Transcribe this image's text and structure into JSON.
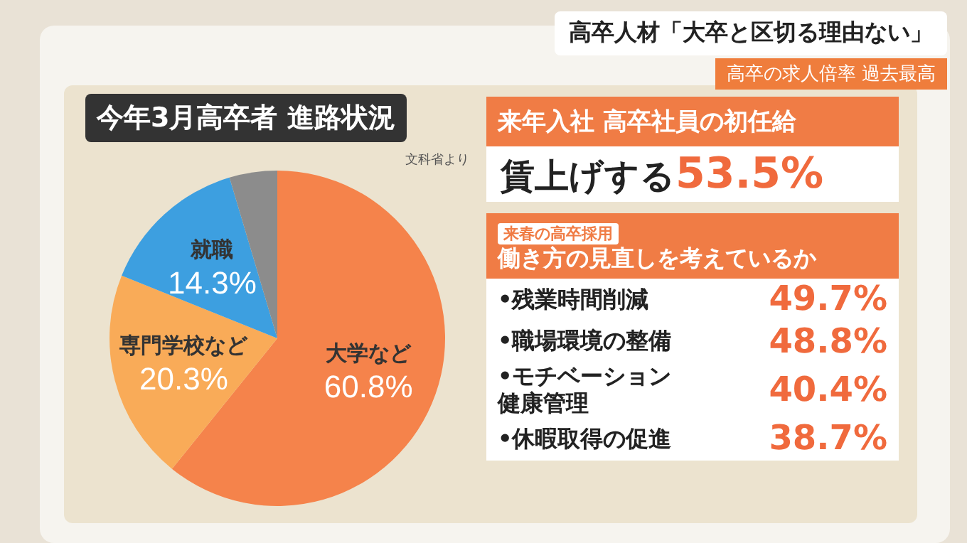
{
  "chart_data": [
    {
      "type": "other",
      "title": "高卒人材「大卒と区切る理由ない」",
      "subtitle": "高卒の求人倍率 過去最高"
    },
    {
      "type": "pie",
      "title": "今年3月高卒者 進路状況",
      "annotations": [
        "文科省より"
      ],
      "categories": [
        "大学など",
        "専門学校など",
        "就職",
        null
      ],
      "values": [
        60.8,
        20.3,
        14.3,
        4.6
      ],
      "value_labels": [
        "60.8%",
        "20.3%",
        "14.3%",
        null
      ],
      "colors": [
        "#f5834b",
        "#f9ab58",
        "#3d9fe0",
        "#8c8c8c"
      ]
    },
    {
      "type": "other",
      "title": "来年入社 高卒社員の初任給",
      "annotations": [
        "賃上げする",
        "53.5%",
        "来春の高卒採用",
        "働き方の見直しを考えているか",
        "•残業時間削減",
        "49.7%",
        "•職場環境の整備",
        "48.8%",
        "•モチベーション健康管理",
        "40.4%",
        "•休暇取得の促進",
        "38.7%"
      ]
    }
  ]
}
